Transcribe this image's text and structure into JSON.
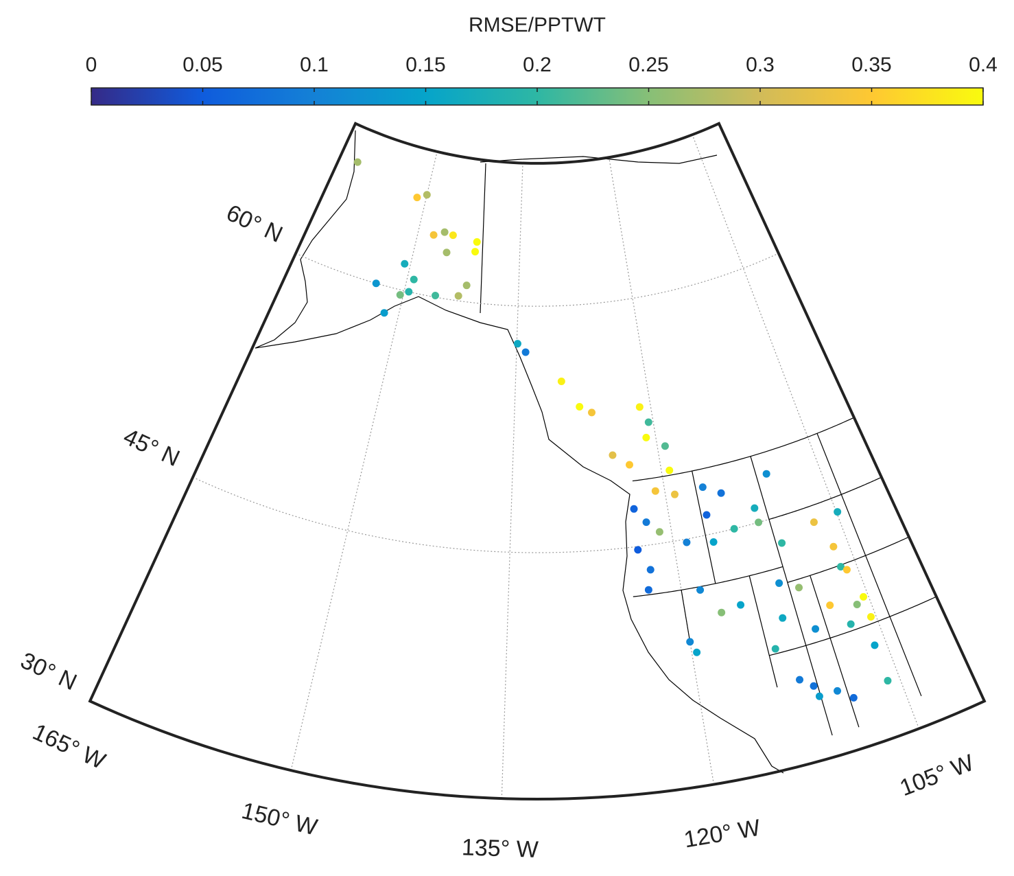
{
  "chart_data": {
    "type": "scatter",
    "title": "RMSE/PPTWT",
    "clim": [
      0,
      0.4
    ],
    "cticks": [
      0,
      0.05,
      0.1,
      0.15,
      0.2,
      0.25,
      0.3,
      0.35,
      0.4
    ],
    "colormap": [
      "#352a87",
      "#0f5cdd",
      "#1481d6",
      "#06a4ca",
      "#2eb7a4",
      "#87bf77",
      "#d1bb59",
      "#fec832",
      "#f9fb0e"
    ],
    "lonlim": [
      -165,
      -100
    ],
    "latlim": [
      30,
      68.7
    ],
    "lonticks": [
      {
        "value": -165,
        "label": "165° W"
      },
      {
        "value": -150,
        "label": "150° W"
      },
      {
        "value": -135,
        "label": "135° W"
      },
      {
        "value": -120,
        "label": "120° W"
      },
      {
        "value": -105,
        "label": "105° W"
      }
    ],
    "latticks": [
      {
        "value": 30,
        "label": "30° N"
      },
      {
        "value": 45,
        "label": "45° N"
      },
      {
        "value": 60,
        "label": "60° N"
      }
    ],
    "grid": true,
    "lon": [
      -162.1,
      -151.4,
      -150.0,
      -147.7,
      -146.2,
      -144.9,
      -141.3,
      -141.4,
      -145.4,
      -150.8,
      -153.8,
      -149.1,
      -150.4,
      -149.4,
      -151.8,
      -142.0,
      -142.9,
      -145.9,
      -134.9,
      -133.9,
      -129.7,
      -127.8,
      -126.5,
      -124.7,
      -123.1,
      -121.2,
      -120.5,
      -121.0,
      -119.2,
      -119.2,
      -123.2,
      -122.2,
      -123.3,
      -122.4,
      -122.8,
      -121.1,
      -119.1,
      -120.0,
      -119.6,
      -116.3,
      -116.5,
      -116.4,
      -117.0,
      -112.0,
      -110.0,
      -110.5,
      -111.7,
      -112.2,
      -113.4,
      -110.2,
      -112.2,
      -111.3,
      -111.1,
      -109.7,
      -108.7,
      -107.2,
      -106.3,
      -106.3,
      -105.9,
      -105.4,
      -106.1,
      -105.4,
      -105.9,
      -105.9,
      -108.2,
      -104.9,
      -118.8,
      -114.3,
      -112.0,
      -118.4,
      -115.3,
      -109.9,
      -107.1,
      -120.9,
      -114.7
    ],
    "lat": [
      66.6,
      65.7,
      66.0,
      63.7,
      64.0,
      63.9,
      63.7,
      63.1,
      62.8,
      61.6,
      60.0,
      60.8,
      59.7,
      60.0,
      58.4,
      61.0,
      60.3,
      60.1,
      57.7,
      57.2,
      55.4,
      53.8,
      53.4,
      50.7,
      50.0,
      53.4,
      52.4,
      51.5,
      50.8,
      49.3,
      47.3,
      46.4,
      44.8,
      43.5,
      42.3,
      45.7,
      47.8,
      38.8,
      38.1,
      47.9,
      46.2,
      44.5,
      40.2,
      45.9,
      47.7,
      43.4,
      41.1,
      39.0,
      37.3,
      40.5,
      35.1,
      34.5,
      33.8,
      33.8,
      33.1,
      44.0,
      42.2,
      40.9,
      40.6,
      38.7,
      38.4,
      37.4,
      35.7,
      33.4,
      38.9,
      44.1,
      44.8,
      45.0,
      45.0,
      41.8,
      40.4,
      37.8,
      37.4,
      48.2,
      47.3
    ],
    "values": [
      0.27,
      0.35,
      0.28,
      0.34,
      0.27,
      0.38,
      0.4,
      0.4,
      0.27,
      0.17,
      0.13,
      0.2,
      0.24,
      0.19,
      0.14,
      0.27,
      0.28,
      0.21,
      0.16,
      0.09,
      0.39,
      0.4,
      0.34,
      0.32,
      0.35,
      0.39,
      0.21,
      0.4,
      0.22,
      0.4,
      0.06,
      0.09,
      0.05,
      0.08,
      0.07,
      0.26,
      0.33,
      0.11,
      0.15,
      0.1,
      0.06,
      0.15,
      0.25,
      0.17,
      0.12,
      0.2,
      0.12,
      0.16,
      0.19,
      0.26,
      0.09,
      0.08,
      0.14,
      0.11,
      0.07,
      0.33,
      0.34,
      0.2,
      0.35,
      0.4,
      0.25,
      0.39,
      0.15,
      0.2,
      0.35,
      0.17,
      0.1,
      0.2,
      0.24,
      0.11,
      0.15,
      0.12,
      0.19,
      0.34,
      0.08
    ]
  }
}
